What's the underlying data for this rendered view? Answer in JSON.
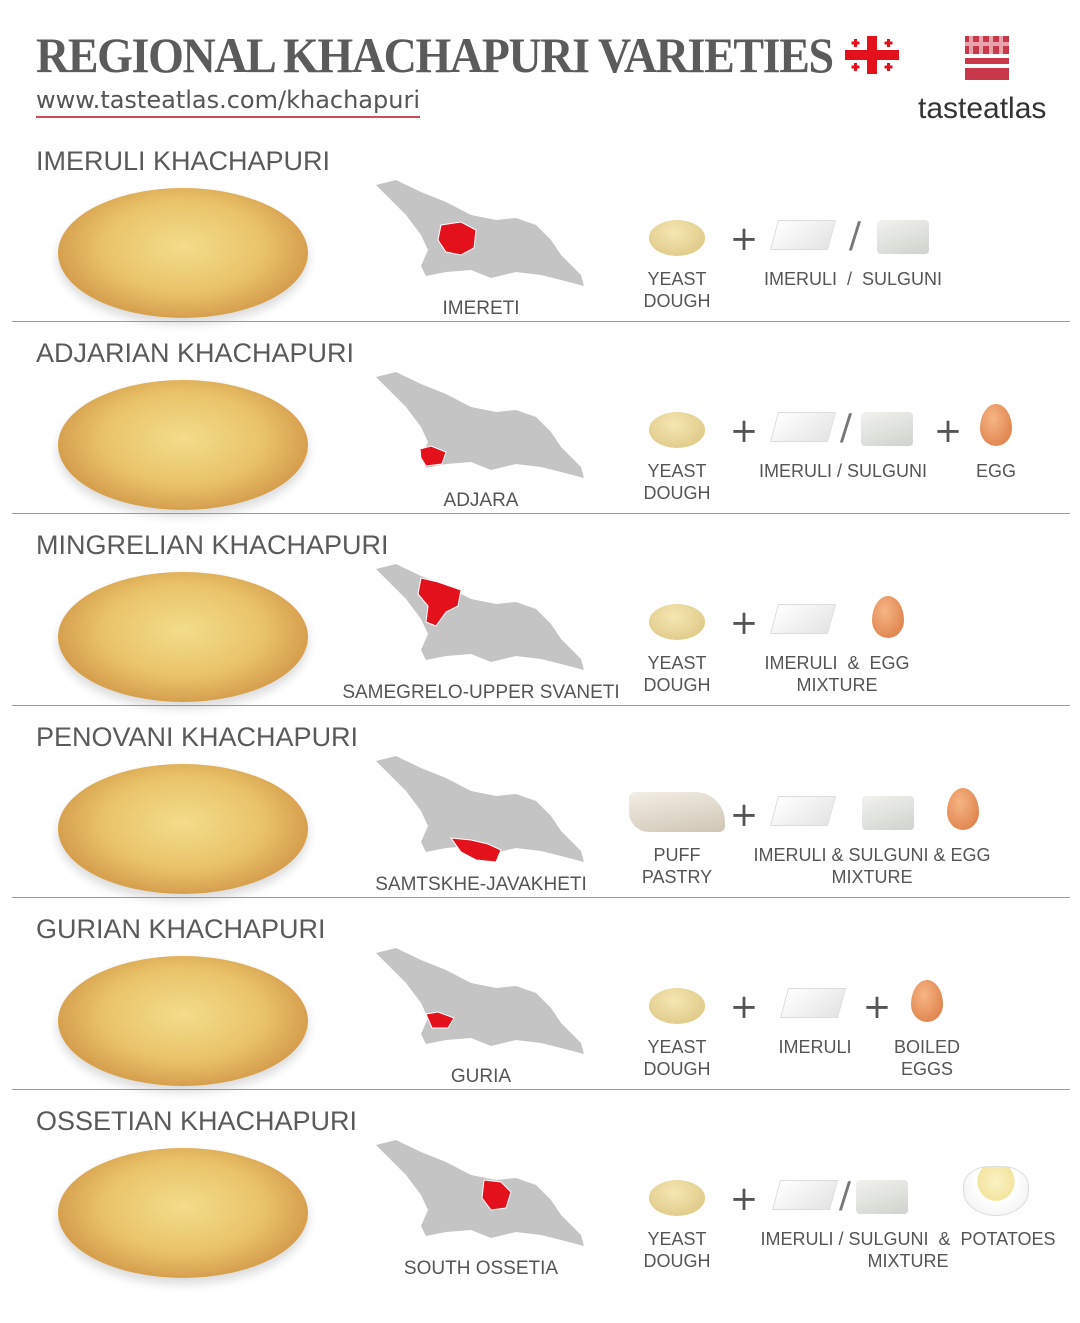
{
  "header": {
    "title": "REGIONAL KHACHAPURI VARIETIES",
    "url": "www.tasteatlas.com/khachapuri",
    "logo_text": "tasteatlas",
    "flag_icon": "georgia-flag-icon",
    "accent": "#e3111b"
  },
  "rows": [
    {
      "title": "IMERULI KHACHAPURI",
      "region": "IMERETI",
      "ingredients": [
        {
          "type": "dough"
        },
        {
          "type": "plus"
        },
        {
          "type": "cheese"
        },
        {
          "type": "slash"
        },
        {
          "type": "sulguni"
        }
      ],
      "labels": [
        "YEAST\nDOUGH",
        "IMERULI  /  SULGUNI"
      ]
    },
    {
      "title": "ADJARIAN KHACHAPURI",
      "region": "ADJARA",
      "ingredients": [
        {
          "type": "dough"
        },
        {
          "type": "plus"
        },
        {
          "type": "cheese"
        },
        {
          "type": "slash"
        },
        {
          "type": "sulguni"
        },
        {
          "type": "plus"
        },
        {
          "type": "egg"
        }
      ],
      "labels": [
        "YEAST\nDOUGH",
        "IMERULI / SULGUNI",
        "EGG"
      ]
    },
    {
      "title": "MINGRELIAN KHACHAPURI",
      "region": "SAMEGRELO-UPPER SVANETI",
      "ingredients": [
        {
          "type": "dough"
        },
        {
          "type": "plus"
        },
        {
          "type": "cheese"
        },
        {
          "type": "egg"
        }
      ],
      "labels": [
        "YEAST\nDOUGH",
        "IMERULI  &  EGG\nMIXTURE"
      ]
    },
    {
      "title": "PENOVANI KHACHAPURI",
      "region": "SAMTSKHE-JAVAKHETI",
      "ingredients": [
        {
          "type": "puff"
        },
        {
          "type": "plus"
        },
        {
          "type": "cheese"
        },
        {
          "type": "sulguni"
        },
        {
          "type": "egg"
        }
      ],
      "labels": [
        "PUFF\nPASTRY",
        "IMERULI & SULGUNI & EGG\nMIXTURE"
      ]
    },
    {
      "title": "GURIAN KHACHAPURI",
      "region": "GURIA",
      "ingredients": [
        {
          "type": "dough"
        },
        {
          "type": "plus"
        },
        {
          "type": "cheese"
        },
        {
          "type": "plus"
        },
        {
          "type": "egg"
        }
      ],
      "labels": [
        "YEAST\nDOUGH",
        "IMERULI",
        "BOILED\nEGGS"
      ]
    },
    {
      "title": "OSSETIAN KHACHAPURI",
      "region": "SOUTH OSSETIA",
      "ingredients": [
        {
          "type": "dough"
        },
        {
          "type": "plus"
        },
        {
          "type": "cheese"
        },
        {
          "type": "slash"
        },
        {
          "type": "sulguni"
        },
        {
          "type": "pot"
        }
      ],
      "labels": [
        "YEAST\nDOUGH",
        "IMERULI / SULGUNI  &  POTATOES\nMIXTURE"
      ]
    }
  ]
}
